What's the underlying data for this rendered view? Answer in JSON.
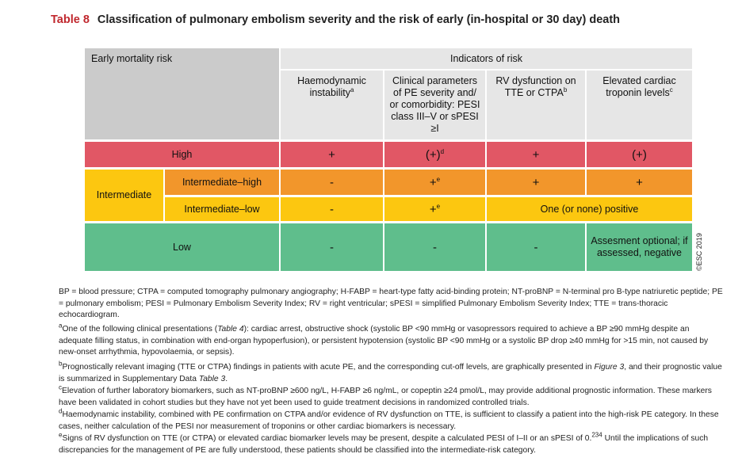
{
  "title": {
    "label": "Table 8",
    "text": "Classification of pulmonary embolism severity and the risk of early (in-hospital or 30 day) death"
  },
  "header": {
    "risk": "Early mortality risk",
    "indicators": "Indicators of risk",
    "col1": "Haemodynamic instability",
    "col1_sup": "a",
    "col2": "Clinical parameters of PE severity and/ or comorbidity: PESI class III–V or sPESI ≥I",
    "col3": "RV dysfunction on TTE or CTPA",
    "col3_sup": "b",
    "col4": "Elevated cardiac troponin levels",
    "col4_sup": "c"
  },
  "rows": {
    "high": {
      "label": "High",
      "c1": "+",
      "c2": "(+)",
      "c2_sup": "d",
      "c3": "+",
      "c4": "(+)"
    },
    "intermediate": {
      "label": "Intermediate"
    },
    "int_high": {
      "label": "Intermediate–high",
      "c1": "-",
      "c2": "+",
      "c2_sup": "e",
      "c3": "+",
      "c4": "+"
    },
    "int_low": {
      "label": "Intermediate–low",
      "c1": "-",
      "c2": "+",
      "c2_sup": "e",
      "c34": "One (or none) positive"
    },
    "low": {
      "label": "Low",
      "c1": "-",
      "c2": "-",
      "c3": "-",
      "c4": "Assesment optional; if assessed, negative"
    }
  },
  "copyright": "©ESC 2019",
  "footnotes": {
    "abbrev": "BP = blood pressure; CTPA = computed tomography pulmonary angiography; H-FABP = heart-type fatty acid-binding protein; NT-proBNP = N-terminal pro B-type natriuretic peptide; PE = pulmonary embolism; PESI = Pulmonary Embolism Severity Index; RV = right ventricular; sPESI = simplified Pulmonary Embolism Severity Index; TTE = trans-thoracic echocardiogram.",
    "a_mark": "a",
    "a_1": "One of the following clinical presentations (",
    "a_ref": "Table 4",
    "a_2": "): cardiac arrest, obstructive shock (systolic BP <90 mmHg or vasopressors required to achieve a BP ≥90 mmHg despite an adequate filling status, in combination with end-organ hypoperfusion), or persistent hypotension (systolic BP <90 mmHg or a systolic BP drop ≥40 mmHg for >15 min, not caused by new-onset arrhythmia, hypovolaemia, or sepsis).",
    "b_mark": "b",
    "b_1": "Prognostically relevant imaging (TTE or CTPA) findings in patients with acute PE, and the corresponding cut-off levels, are graphically presented in ",
    "b_ref1": "Figure 3",
    "b_2": ", and their prognostic value is summarized in Supplementary Data ",
    "b_ref2": "Table 3",
    "b_3": ".",
    "c_mark": "c",
    "c_text": "Elevation of further laboratory biomarkers, such as NT-proBNP ≥600 ng/L, H-FABP ≥6 ng/mL, or copeptin ≥24 pmol/L, may provide additional prognostic information. These markers have been validated in cohort studies but they have not yet been used to guide treatment decisions in randomized controlled trials.",
    "d_mark": "d",
    "d_text": "Haemodynamic instability, combined with PE confirmation on CTPA and/or evidence of RV dysfunction on TTE, is sufficient to classify a patient into the high-risk PE category. In these cases, neither calculation of the PESI nor measurement of troponins or other cardiac biomarkers is necessary.",
    "e_mark": "e",
    "e_1": "Signs of RV dysfunction on TTE (or CTPA) or elevated cardiac biomarker levels may be present, despite a calculated PESI of I–II or an sPESI of 0.",
    "e_ref": "234",
    "e_2": " Until the implications of such discrepancies for the management of PE are fully understood, these patients should be classified into the intermediate-risk category."
  }
}
